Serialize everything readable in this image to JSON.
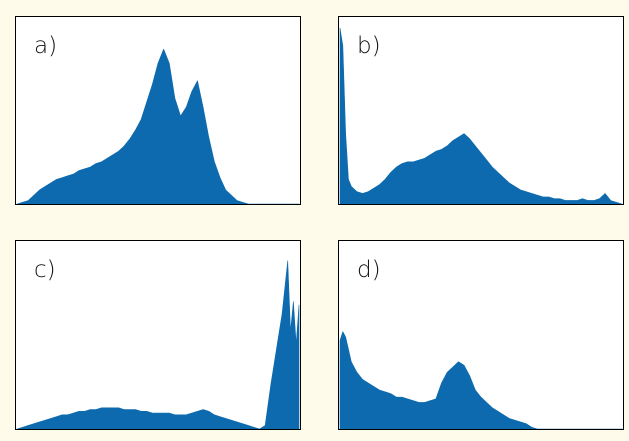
{
  "colors": {
    "background": "#fffbea",
    "panel_background": "#ffffff",
    "bar": "#0d6aae",
    "frame": "#000000"
  },
  "chart_data": [
    {
      "type": "area",
      "panel_label": "a)",
      "x": [
        0.0,
        0.02,
        0.04,
        0.06,
        0.08,
        0.1,
        0.12,
        0.14,
        0.16,
        0.18,
        0.2,
        0.22,
        0.24,
        0.26,
        0.28,
        0.3,
        0.32,
        0.34,
        0.36,
        0.38,
        0.4,
        0.42,
        0.44,
        0.46,
        0.48,
        0.5,
        0.52,
        0.54,
        0.56,
        0.58,
        0.6,
        0.62,
        0.64,
        0.66,
        0.68,
        0.7,
        0.72,
        0.74,
        0.76,
        0.78,
        0.8,
        0.82,
        0.84,
        0.86,
        0.88,
        0.9,
        0.92,
        0.94,
        0.96,
        0.98,
        1.0
      ],
      "values": [
        0.0,
        0.01,
        0.02,
        0.05,
        0.08,
        0.1,
        0.12,
        0.14,
        0.15,
        0.16,
        0.17,
        0.19,
        0.2,
        0.21,
        0.23,
        0.24,
        0.26,
        0.28,
        0.3,
        0.33,
        0.37,
        0.42,
        0.48,
        0.58,
        0.68,
        0.8,
        0.88,
        0.8,
        0.6,
        0.5,
        0.55,
        0.64,
        0.7,
        0.55,
        0.38,
        0.24,
        0.15,
        0.08,
        0.05,
        0.02,
        0.01,
        0.0,
        0.0,
        0.0,
        0.0,
        0.0,
        0.0,
        0.0,
        0.0,
        0.0,
        0.0
      ],
      "xlim": [
        0,
        1
      ],
      "ylim": [
        0,
        1
      ]
    },
    {
      "type": "area",
      "panel_label": "b)",
      "x": [
        0.0,
        0.01,
        0.02,
        0.03,
        0.04,
        0.06,
        0.08,
        0.1,
        0.12,
        0.14,
        0.16,
        0.18,
        0.2,
        0.22,
        0.24,
        0.26,
        0.28,
        0.3,
        0.32,
        0.34,
        0.36,
        0.38,
        0.4,
        0.42,
        0.44,
        0.46,
        0.48,
        0.5,
        0.52,
        0.54,
        0.56,
        0.58,
        0.6,
        0.62,
        0.64,
        0.66,
        0.68,
        0.7,
        0.72,
        0.74,
        0.76,
        0.78,
        0.8,
        0.82,
        0.84,
        0.86,
        0.88,
        0.9,
        0.92,
        0.94,
        0.96,
        0.98,
        1.0
      ],
      "values": [
        1.0,
        0.9,
        0.4,
        0.14,
        0.1,
        0.07,
        0.06,
        0.07,
        0.09,
        0.11,
        0.14,
        0.18,
        0.21,
        0.23,
        0.24,
        0.24,
        0.25,
        0.26,
        0.28,
        0.3,
        0.31,
        0.33,
        0.36,
        0.38,
        0.4,
        0.37,
        0.33,
        0.29,
        0.25,
        0.21,
        0.18,
        0.15,
        0.12,
        0.1,
        0.08,
        0.07,
        0.06,
        0.05,
        0.04,
        0.04,
        0.03,
        0.03,
        0.02,
        0.02,
        0.02,
        0.03,
        0.02,
        0.02,
        0.03,
        0.06,
        0.02,
        0.01,
        0.0
      ],
      "xlim": [
        0,
        1
      ],
      "ylim": [
        0,
        1
      ]
    },
    {
      "type": "area",
      "panel_label": "c)",
      "x": [
        0.0,
        0.02,
        0.04,
        0.06,
        0.08,
        0.1,
        0.12,
        0.14,
        0.16,
        0.18,
        0.2,
        0.22,
        0.24,
        0.26,
        0.28,
        0.3,
        0.32,
        0.34,
        0.36,
        0.38,
        0.4,
        0.42,
        0.44,
        0.46,
        0.48,
        0.5,
        0.52,
        0.54,
        0.56,
        0.58,
        0.6,
        0.62,
        0.64,
        0.66,
        0.68,
        0.7,
        0.72,
        0.74,
        0.76,
        0.78,
        0.8,
        0.82,
        0.84,
        0.86,
        0.88,
        0.9,
        0.92,
        0.94,
        0.96,
        0.97,
        0.98,
        0.99,
        1.0
      ],
      "values": [
        0.0,
        0.01,
        0.02,
        0.03,
        0.04,
        0.05,
        0.06,
        0.07,
        0.08,
        0.08,
        0.09,
        0.1,
        0.1,
        0.11,
        0.11,
        0.12,
        0.12,
        0.12,
        0.12,
        0.11,
        0.11,
        0.11,
        0.1,
        0.1,
        0.09,
        0.09,
        0.09,
        0.09,
        0.08,
        0.08,
        0.08,
        0.09,
        0.1,
        0.11,
        0.1,
        0.08,
        0.07,
        0.06,
        0.05,
        0.04,
        0.03,
        0.02,
        0.01,
        0.0,
        0.02,
        0.25,
        0.45,
        0.65,
        0.95,
        0.55,
        0.72,
        0.48,
        0.7
      ],
      "xlim": [
        0,
        1
      ],
      "ylim": [
        0,
        1
      ]
    },
    {
      "type": "area",
      "panel_label": "d)",
      "x": [
        0.0,
        0.01,
        0.02,
        0.04,
        0.06,
        0.08,
        0.1,
        0.12,
        0.14,
        0.16,
        0.18,
        0.2,
        0.22,
        0.24,
        0.26,
        0.28,
        0.3,
        0.32,
        0.34,
        0.36,
        0.38,
        0.4,
        0.42,
        0.44,
        0.46,
        0.48,
        0.5,
        0.52,
        0.54,
        0.56,
        0.58,
        0.6,
        0.62,
        0.64,
        0.66,
        0.68,
        0.7,
        0.72,
        0.74,
        0.76,
        0.78,
        0.8,
        0.82,
        0.84,
        0.86,
        0.88,
        0.9,
        0.92,
        0.94,
        0.96,
        0.98,
        1.0
      ],
      "values": [
        0.5,
        0.55,
        0.52,
        0.38,
        0.32,
        0.28,
        0.26,
        0.24,
        0.22,
        0.21,
        0.2,
        0.18,
        0.18,
        0.17,
        0.16,
        0.15,
        0.15,
        0.16,
        0.17,
        0.26,
        0.32,
        0.35,
        0.38,
        0.36,
        0.3,
        0.22,
        0.18,
        0.15,
        0.12,
        0.1,
        0.08,
        0.06,
        0.05,
        0.04,
        0.03,
        0.01,
        0.0,
        0.0,
        0.0,
        0.0,
        0.0,
        0.0,
        0.0,
        0.0,
        0.0,
        0.0,
        0.0,
        0.0,
        0.0,
        0.0,
        0.0,
        0.0
      ],
      "xlim": [
        0,
        1
      ],
      "ylim": [
        0,
        1
      ]
    }
  ]
}
